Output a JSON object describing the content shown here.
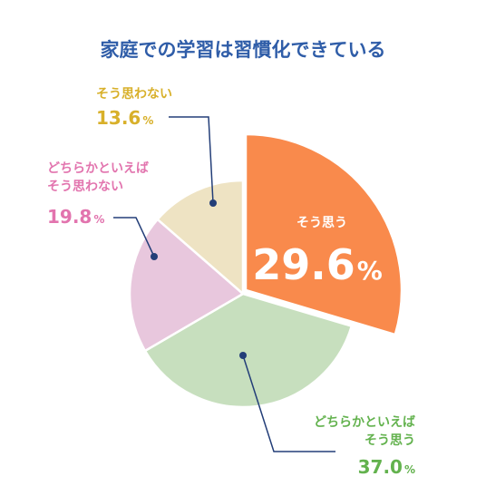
{
  "chart_data": {
    "type": "pie",
    "title": "家庭での学習は習慣化できている",
    "slices": [
      {
        "label_lines": [
          "そう思う"
        ],
        "value": 29.6,
        "display": "29.6",
        "unit": "%",
        "color": "#F98A4C",
        "label_color": "#ffffff",
        "exploded": true
      },
      {
        "label_lines": [
          "どちらかといえば",
          "そう思う"
        ],
        "value": 37.0,
        "display": "37.0",
        "unit": "%",
        "color": "#C7DFBE",
        "label_color": "#63B24E",
        "exploded": false
      },
      {
        "label_lines": [
          "どちらかといえば",
          "そう思わない"
        ],
        "value": 19.8,
        "display": "19.8",
        "unit": "%",
        "color": "#E8C7DD",
        "label_color": "#E274AE",
        "exploded": false
      },
      {
        "label_lines": [
          "そう思わない"
        ],
        "value": 13.6,
        "display": "13.6",
        "unit": "%",
        "color": "#EEE3C3",
        "label_color": "#D8B02A",
        "exploded": false
      }
    ],
    "title_color": "#2F5DA8",
    "leader_color": "#233E78",
    "start": "12 o'clock",
    "direction": "clockwise",
    "legend": "none"
  }
}
